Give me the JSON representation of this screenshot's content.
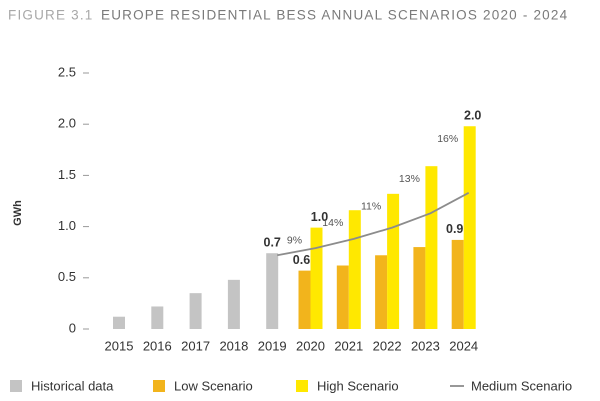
{
  "chart_data": {
    "type": "bar",
    "figure_label": "FIGURE 3.1",
    "title": "EUROPE RESIDENTIAL BESS ANNUAL SCENARIOS 2020 - 2024",
    "y_label": "GWh",
    "categories": [
      "2015",
      "2016",
      "2017",
      "2018",
      "2019",
      "2020",
      "2021",
      "2022",
      "2023",
      "2024"
    ],
    "ylim": [
      0,
      2.5
    ],
    "yticks": [
      0,
      0.5,
      {
        "value": 1,
        "label": "1.0"
      },
      1.5,
      {
        "value": 2,
        "label": "2.0"
      },
      2.5
    ],
    "series": [
      {
        "name": "Historical data",
        "type": "bar",
        "color": "#c4c4c4",
        "values": [
          0.12,
          0.22,
          0.35,
          0.48,
          0.74,
          null,
          null,
          null,
          null,
          null
        ],
        "value_labels": [
          null,
          null,
          null,
          null,
          "0.7",
          null,
          null,
          null,
          null,
          null
        ]
      },
      {
        "name": "Low Scenario",
        "type": "bar",
        "color": "#f2b41c",
        "values": [
          null,
          null,
          null,
          null,
          null,
          0.57,
          0.62,
          0.72,
          0.8,
          0.87
        ],
        "value_labels": [
          null,
          null,
          null,
          null,
          null,
          "0.6",
          null,
          null,
          null,
          "0.9"
        ]
      },
      {
        "name": "High Scenario",
        "type": "bar",
        "color": "#ffe800",
        "values": [
          null,
          null,
          null,
          null,
          null,
          0.99,
          1.16,
          1.32,
          1.59,
          1.98
        ],
        "value_labels": [
          null,
          null,
          null,
          null,
          null,
          "1.0",
          null,
          null,
          null,
          "2.0"
        ]
      },
      {
        "name": "Medium Scenario",
        "type": "line",
        "color": "#8c8c8c",
        "values": [
          null,
          null,
          null,
          null,
          0.72,
          0.79,
          0.88,
          0.99,
          1.13,
          1.33
        ]
      }
    ],
    "growth_labels": [
      null,
      null,
      null,
      null,
      null,
      "9%",
      "14%",
      "11%",
      "13%",
      "16%"
    ]
  }
}
